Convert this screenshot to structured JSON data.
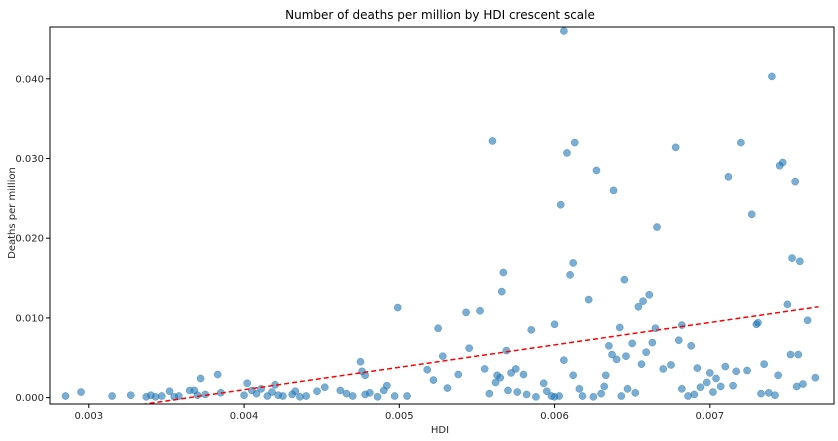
{
  "chart_data": {
    "type": "scatter",
    "title": "Number of deaths per million by HDI crescent scale",
    "xlabel": "HDI",
    "ylabel": "Deaths per million",
    "xlim": [
      0.00275,
      0.0078
    ],
    "ylim": [
      -0.0008,
      0.0465
    ],
    "xticks": [
      0.003,
      0.004,
      0.005,
      0.006,
      0.007
    ],
    "xtick_labels": [
      "0.003",
      "0.004",
      "0.005",
      "0.006",
      "0.007"
    ],
    "yticks": [
      0.0,
      0.01,
      0.02,
      0.03,
      0.04
    ],
    "ytick_labels": [
      "0.000",
      "0.010",
      "0.020",
      "0.030",
      "0.040"
    ],
    "grid": false,
    "point_color": "#1f77b4",
    "trend_color": "#ff0000",
    "trendline": {
      "style": "dashed",
      "x": [
        0.00283,
        0.0077
      ],
      "y": [
        -0.0023,
        0.0114
      ]
    },
    "points": [
      [
        0.00285,
        0.0002
      ],
      [
        0.00295,
        0.0007
      ],
      [
        0.00315,
        0.0002
      ],
      [
        0.00327,
        0.0003
      ],
      [
        0.00337,
        0.0001
      ],
      [
        0.0034,
        0.0003
      ],
      [
        0.00343,
        0.0001
      ],
      [
        0.00347,
        0.0002
      ],
      [
        0.00352,
        0.0008
      ],
      [
        0.00355,
        0.0001
      ],
      [
        0.00358,
        0.0002
      ],
      [
        0.00365,
        0.0009
      ],
      [
        0.00368,
        0.0009
      ],
      [
        0.00372,
        0.0024
      ],
      [
        0.0037,
        0.0003
      ],
      [
        0.00375,
        0.0004
      ],
      [
        0.00383,
        0.0029
      ],
      [
        0.00385,
        0.0006
      ],
      [
        0.004,
        0.0003
      ],
      [
        0.00402,
        0.0018
      ],
      [
        0.00405,
        0.0009
      ],
      [
        0.00408,
        0.0005
      ],
      [
        0.00411,
        0.0011
      ],
      [
        0.00415,
        0.0002
      ],
      [
        0.00418,
        0.0007
      ],
      [
        0.0042,
        0.0016
      ],
      [
        0.00422,
        0.0003
      ],
      [
        0.00425,
        0.0002
      ],
      [
        0.00431,
        0.0004
      ],
      [
        0.00433,
        0.0008
      ],
      [
        0.00436,
        0.0001
      ],
      [
        0.0044,
        0.0002
      ],
      [
        0.00447,
        0.0008
      ],
      [
        0.00452,
        0.0013
      ],
      [
        0.00462,
        0.0009
      ],
      [
        0.00466,
        0.0005
      ],
      [
        0.0047,
        0.0002
      ],
      [
        0.00475,
        0.0045
      ],
      [
        0.00476,
        0.0033
      ],
      [
        0.00478,
        0.0028
      ],
      [
        0.00478,
        0.0004
      ],
      [
        0.00481,
        0.0006
      ],
      [
        0.00486,
        0.0001
      ],
      [
        0.0049,
        0.0009
      ],
      [
        0.00492,
        0.0015
      ],
      [
        0.00497,
        0.0002
      ],
      [
        0.00499,
        0.0113
      ],
      [
        0.00505,
        0.0002
      ],
      [
        0.00518,
        0.0035
      ],
      [
        0.00522,
        0.0022
      ],
      [
        0.00525,
        0.0087
      ],
      [
        0.00528,
        0.0052
      ],
      [
        0.00531,
        0.0012
      ],
      [
        0.00538,
        0.0029
      ],
      [
        0.00543,
        0.0107
      ],
      [
        0.00545,
        0.0062
      ],
      [
        0.00552,
        0.0109
      ],
      [
        0.00555,
        0.0036
      ],
      [
        0.00558,
        0.0005
      ],
      [
        0.0056,
        0.0322
      ],
      [
        0.00562,
        0.0019
      ],
      [
        0.00563,
        0.0028
      ],
      [
        0.00565,
        0.0025
      ],
      [
        0.00566,
        0.0133
      ],
      [
        0.00567,
        0.0157
      ],
      [
        0.00569,
        0.0059
      ],
      [
        0.0057,
        0.0009
      ],
      [
        0.00572,
        0.0031
      ],
      [
        0.00575,
        0.0036
      ],
      [
        0.00576,
        0.0007
      ],
      [
        0.0058,
        0.0029
      ],
      [
        0.00582,
        0.0004
      ],
      [
        0.00585,
        0.0085
      ],
      [
        0.00588,
        0.0001
      ],
      [
        0.00593,
        0.0018
      ],
      [
        0.00595,
        0.0008
      ],
      [
        0.00598,
        0.0002
      ],
      [
        0.006,
        0.0001
      ],
      [
        0.006,
        0.0092
      ],
      [
        0.00603,
        0.0002
      ],
      [
        0.00604,
        0.0242
      ],
      [
        0.00606,
        0.046
      ],
      [
        0.00606,
        0.0047
      ],
      [
        0.00608,
        0.0307
      ],
      [
        0.0061,
        0.0154
      ],
      [
        0.00612,
        0.0169
      ],
      [
        0.00612,
        0.0028
      ],
      [
        0.00613,
        0.032
      ],
      [
        0.00616,
        0.0011
      ],
      [
        0.00618,
        0.0002
      ],
      [
        0.00622,
        0.0123
      ],
      [
        0.00625,
        0.0001
      ],
      [
        0.00627,
        0.0285
      ],
      [
        0.0063,
        0.0005
      ],
      [
        0.00632,
        0.0014
      ],
      [
        0.00633,
        0.0028
      ],
      [
        0.00635,
        0.0065
      ],
      [
        0.00637,
        0.0054
      ],
      [
        0.00638,
        0.026
      ],
      [
        0.0064,
        0.0048
      ],
      [
        0.00642,
        0.0088
      ],
      [
        0.00643,
        0.0002
      ],
      [
        0.00645,
        0.0148
      ],
      [
        0.00646,
        0.0052
      ],
      [
        0.00647,
        0.0011
      ],
      [
        0.0065,
        0.0068
      ],
      [
        0.00652,
        0.0006
      ],
      [
        0.00654,
        0.0114
      ],
      [
        0.00656,
        0.0042
      ],
      [
        0.00657,
        0.0121
      ],
      [
        0.00659,
        0.0057
      ],
      [
        0.00661,
        0.0129
      ],
      [
        0.00663,
        0.0069
      ],
      [
        0.00665,
        0.0087
      ],
      [
        0.00666,
        0.0214
      ],
      [
        0.0067,
        0.0036
      ],
      [
        0.00675,
        0.0041
      ],
      [
        0.00678,
        0.0314
      ],
      [
        0.0068,
        0.0072
      ],
      [
        0.00682,
        0.0011
      ],
      [
        0.00682,
        0.0091
      ],
      [
        0.00686,
        0.0002
      ],
      [
        0.00688,
        0.0065
      ],
      [
        0.0069,
        0.0004
      ],
      [
        0.00692,
        0.0037
      ],
      [
        0.00694,
        0.0013
      ],
      [
        0.00698,
        0.0019
      ],
      [
        0.007,
        0.0031
      ],
      [
        0.00702,
        0.0007
      ],
      [
        0.00704,
        0.0024
      ],
      [
        0.00707,
        0.0014
      ],
      [
        0.0071,
        0.0039
      ],
      [
        0.00712,
        0.0277
      ],
      [
        0.00715,
        0.0015
      ],
      [
        0.00717,
        0.0033
      ],
      [
        0.0072,
        0.032
      ],
      [
        0.00724,
        0.0034
      ],
      [
        0.00727,
        0.023
      ],
      [
        0.0073,
        0.0092
      ],
      [
        0.00731,
        0.0094
      ],
      [
        0.00733,
        0.0005
      ],
      [
        0.00735,
        0.0042
      ],
      [
        0.00738,
        0.0006
      ],
      [
        0.0074,
        0.0403
      ],
      [
        0.00742,
        0.0003
      ],
      [
        0.00744,
        0.0028
      ],
      [
        0.00745,
        0.0291
      ],
      [
        0.00747,
        0.0295
      ],
      [
        0.0075,
        0.0117
      ],
      [
        0.00752,
        0.0054
      ],
      [
        0.00753,
        0.0175
      ],
      [
        0.00755,
        0.0271
      ],
      [
        0.00756,
        0.0014
      ],
      [
        0.00757,
        0.0054
      ],
      [
        0.00758,
        0.0171
      ],
      [
        0.0076,
        0.0017
      ],
      [
        0.00763,
        0.0097
      ],
      [
        0.00768,
        0.0025
      ]
    ]
  }
}
